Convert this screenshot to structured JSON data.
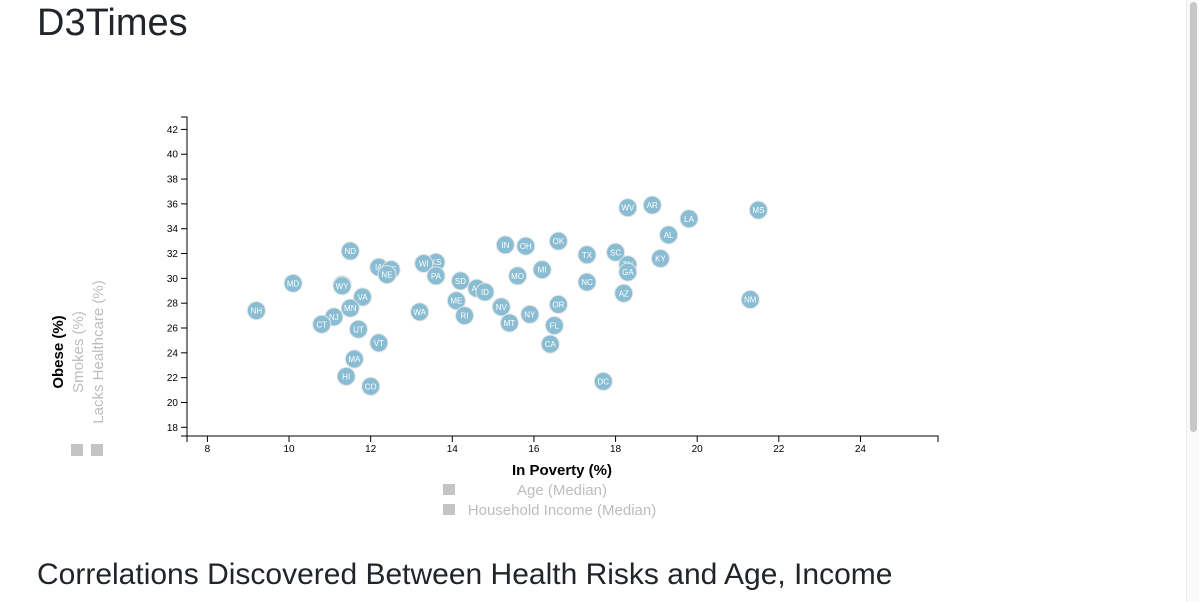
{
  "page": {
    "title": "D3Times",
    "section_heading": "Correlations Discovered Between Health Risks and Age, Income"
  },
  "colors": {
    "circle_fill": "#89bdd3",
    "circle_stroke": "#e3e3e3",
    "inactive_label": "#bdbdbd",
    "legend_square": "#c4c4c4"
  },
  "chart_data": {
    "type": "scatter",
    "xlim": [
      7.5,
      25.9
    ],
    "ylim": [
      17.3,
      43.0
    ],
    "x_ticks": [
      8,
      10,
      12,
      14,
      16,
      18,
      20,
      22,
      24
    ],
    "y_ticks": [
      18,
      20,
      22,
      24,
      26,
      28,
      30,
      32,
      34,
      36,
      38,
      40,
      42
    ],
    "grid": false,
    "x_axis_labels": [
      {
        "label": "In Poverty (%)",
        "active": true
      },
      {
        "label": "Age (Median)",
        "active": false
      },
      {
        "label": "Household Income (Median)",
        "active": false
      }
    ],
    "y_axis_labels": [
      {
        "label": "Obese (%)",
        "active": true
      },
      {
        "label": "Smokes (%)",
        "active": false
      },
      {
        "label": "Lacks Healthcare (%)",
        "active": false
      }
    ],
    "x_field": "poverty",
    "y_field": "obesity",
    "points": [
      {
        "state": "MS",
        "x": 21.5,
        "y": 35.5
      },
      {
        "state": "AR",
        "x": 18.9,
        "y": 35.9
      },
      {
        "state": "WV",
        "x": 18.3,
        "y": 35.7
      },
      {
        "state": "LA",
        "x": 19.8,
        "y": 34.8
      },
      {
        "state": "AL",
        "x": 19.3,
        "y": 33.5
      },
      {
        "state": "OK",
        "x": 16.6,
        "y": 33.0
      },
      {
        "state": "IN",
        "x": 15.3,
        "y": 32.7
      },
      {
        "state": "OH",
        "x": 15.8,
        "y": 32.6
      },
      {
        "state": "ND",
        "x": 11.5,
        "y": 32.2
      },
      {
        "state": "SC",
        "x": 18.0,
        "y": 32.1
      },
      {
        "state": "TX",
        "x": 17.3,
        "y": 31.9
      },
      {
        "state": "KY",
        "x": 19.1,
        "y": 31.6
      },
      {
        "state": "KS",
        "x": 13.6,
        "y": 31.3
      },
      {
        "state": "WI",
        "x": 13.3,
        "y": 31.2
      },
      {
        "state": "TN",
        "x": 18.3,
        "y": 31.1
      },
      {
        "state": "IA",
        "x": 12.2,
        "y": 30.9
      },
      {
        "state": "DE",
        "x": 12.5,
        "y": 30.7
      },
      {
        "state": "MI",
        "x": 16.2,
        "y": 30.7
      },
      {
        "state": "GA",
        "x": 18.3,
        "y": 30.5
      },
      {
        "state": "NE",
        "x": 12.4,
        "y": 30.3
      },
      {
        "state": "PA",
        "x": 13.6,
        "y": 30.2
      },
      {
        "state": "MO",
        "x": 15.6,
        "y": 30.2
      },
      {
        "state": "SD",
        "x": 14.2,
        "y": 29.8
      },
      {
        "state": "MD",
        "x": 10.1,
        "y": 29.6
      },
      {
        "state": "NC",
        "x": 17.3,
        "y": 29.7
      },
      {
        "state": "IL",
        "x": 11.3,
        "y": 29.5
      },
      {
        "state": "WY",
        "x": 11.3,
        "y": 29.4
      },
      {
        "state": "AK",
        "x": 14.6,
        "y": 29.2
      },
      {
        "state": "ID",
        "x": 14.8,
        "y": 28.9
      },
      {
        "state": "AZ",
        "x": 18.2,
        "y": 28.8
      },
      {
        "state": "VA",
        "x": 11.8,
        "y": 28.5
      },
      {
        "state": "NM",
        "x": 21.3,
        "y": 28.3
      },
      {
        "state": "ME",
        "x": 14.1,
        "y": 28.2
      },
      {
        "state": "OR",
        "x": 16.6,
        "y": 27.9
      },
      {
        "state": "NV",
        "x": 15.2,
        "y": 27.7
      },
      {
        "state": "MN",
        "x": 11.5,
        "y": 27.6
      },
      {
        "state": "NH",
        "x": 9.2,
        "y": 27.4
      },
      {
        "state": "WA",
        "x": 13.2,
        "y": 27.3
      },
      {
        "state": "NY",
        "x": 15.9,
        "y": 27.1
      },
      {
        "state": "RI",
        "x": 14.3,
        "y": 27.0
      },
      {
        "state": "NJ",
        "x": 11.1,
        "y": 26.9
      },
      {
        "state": "MT",
        "x": 15.4,
        "y": 26.4
      },
      {
        "state": "CT",
        "x": 10.8,
        "y": 26.3
      },
      {
        "state": "FL",
        "x": 16.5,
        "y": 26.2
      },
      {
        "state": "UT",
        "x": 11.7,
        "y": 25.9
      },
      {
        "state": "VT",
        "x": 12.2,
        "y": 24.8
      },
      {
        "state": "CA",
        "x": 16.4,
        "y": 24.7
      },
      {
        "state": "MA",
        "x": 11.6,
        "y": 23.5
      },
      {
        "state": "HI",
        "x": 11.4,
        "y": 22.1
      },
      {
        "state": "DC",
        "x": 17.7,
        "y": 21.7
      },
      {
        "state": "CO",
        "x": 12.0,
        "y": 21.3
      }
    ]
  }
}
